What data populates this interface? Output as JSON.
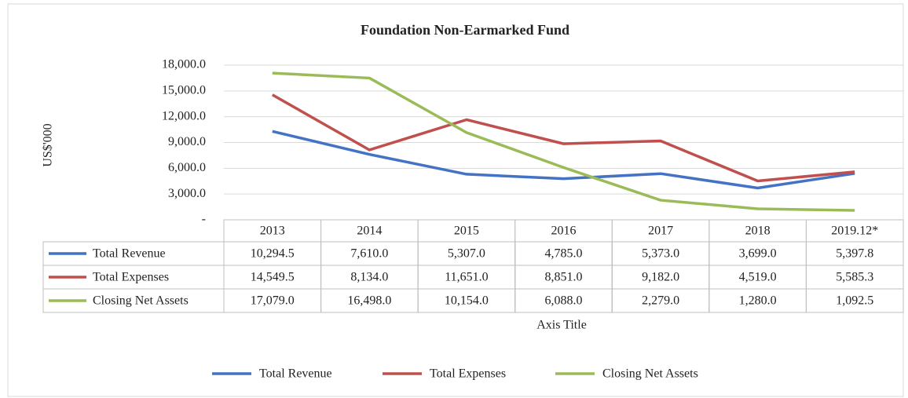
{
  "chart_data": {
    "type": "line",
    "title": "Foundation Non-Earmarked Fund",
    "y_axis_label": "US$'000",
    "x_axis_label": "Axis Title",
    "categories": [
      "2013",
      "2014",
      "2015",
      "2016",
      "2017",
      "2018",
      "2019.12*"
    ],
    "series": [
      {
        "name": "Total Revenue",
        "color": "#4472c4",
        "values": [
          10294.5,
          7610.0,
          5307.0,
          4785.0,
          5373.0,
          3699.0,
          5397.8
        ],
        "value_labels": [
          "10,294.5",
          "7,610.0",
          "5,307.0",
          "4,785.0",
          "5,373.0",
          "3,699.0",
          "5,397.8"
        ]
      },
      {
        "name": "Total Expenses",
        "color": "#c0504d",
        "values": [
          14549.5,
          8134.0,
          11651.0,
          8851.0,
          9182.0,
          4519.0,
          5585.3
        ],
        "value_labels": [
          "14,549.5",
          "8,134.0",
          "11,651.0",
          "8,851.0",
          "9,182.0",
          "4,519.0",
          "5,585.3"
        ]
      },
      {
        "name": "Closing Net Assets",
        "color": "#9bbb59",
        "values": [
          17079.0,
          16498.0,
          10154.0,
          6088.0,
          2279.0,
          1280.0,
          1092.5
        ],
        "value_labels": [
          "17,079.0",
          "16,498.0",
          "10,154.0",
          "6,088.0",
          "2,279.0",
          "1,280.0",
          "1,092.5"
        ]
      }
    ],
    "ylim": [
      0,
      18000
    ],
    "yticks": [
      {
        "value": 0,
        "label": "-"
      },
      {
        "value": 3000,
        "label": "3,000.0"
      },
      {
        "value": 6000,
        "label": "6,000.0"
      },
      {
        "value": 9000,
        "label": "9,000.0"
      },
      {
        "value": 12000,
        "label": "12,000.0"
      },
      {
        "value": 15000,
        "label": "15,000.0"
      },
      {
        "value": 18000,
        "label": "18,000.0"
      }
    ],
    "grid": true,
    "legend": "bottom",
    "data_table": true
  }
}
